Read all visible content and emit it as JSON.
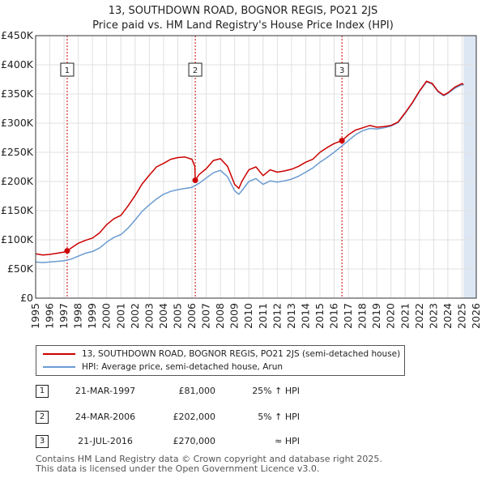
{
  "title_line1": "13, SOUTHDOWN ROAD, BOGNOR REGIS, PO21 2JS",
  "title_line2": "Price paid vs. HM Land Registry's House Price Index (HPI)",
  "colors": {
    "price": "#cc0000",
    "hpi": "#6a9bd1",
    "shade": "#dde7f4",
    "grid": "#e0e0e0"
  },
  "chart_data": {
    "type": "line",
    "title": "13, SOUTHDOWN ROAD, BOGNOR REGIS, PO21 2JS",
    "subtitle": "Price paid vs. HM Land Registry's House Price Index (HPI)",
    "xlabel": "",
    "ylabel": "",
    "xlim": [
      1995,
      2026
    ],
    "ylim": [
      0,
      450000
    ],
    "y_ticks": [
      0,
      50000,
      100000,
      150000,
      200000,
      250000,
      300000,
      350000,
      400000,
      450000
    ],
    "y_tick_labels": [
      "£0",
      "£50K",
      "£100K",
      "£150K",
      "£200K",
      "£250K",
      "£300K",
      "£350K",
      "£400K",
      "£450K"
    ],
    "x_ticks": [
      1995,
      1996,
      1997,
      1998,
      1999,
      2000,
      2001,
      2002,
      2003,
      2004,
      2005,
      2006,
      2007,
      2008,
      2009,
      2010,
      2011,
      2012,
      2013,
      2014,
      2015,
      2016,
      2017,
      2018,
      2019,
      2020,
      2021,
      2022,
      2023,
      2024,
      2025,
      2026
    ],
    "x_tick_labels": [
      "1995",
      "1996",
      "1997",
      "1998",
      "1999",
      "2000",
      "2001",
      "2002",
      "2003",
      "2004",
      "2005",
      "2006",
      "2007",
      "2008",
      "2009",
      "2010",
      "2011",
      "2012",
      "2013",
      "2014",
      "2015",
      "2016",
      "2017",
      "2018",
      "2019",
      "2020",
      "2021",
      "2022",
      "2023",
      "2024",
      "2025",
      "2026"
    ],
    "shaded_future_from": 2025.1,
    "grid": true,
    "series": [
      {
        "name": "13, SOUTHDOWN ROAD, BOGNOR REGIS, PO21 2JS (semi-detached house)",
        "color": "#cc0000",
        "x": [
          1995.0,
          1995.5,
          1996.0,
          1996.5,
          1997.0,
          1997.22,
          1997.5,
          1998.0,
          1998.5,
          1999.0,
          1999.5,
          2000.0,
          2000.5,
          2001.0,
          2001.5,
          2002.0,
          2002.5,
          2003.0,
          2003.5,
          2004.0,
          2004.5,
          2005.0,
          2005.5,
          2006.0,
          2006.2,
          2006.23,
          2006.5,
          2007.0,
          2007.5,
          2008.0,
          2008.5,
          2009.0,
          2009.3,
          2009.5,
          2010.0,
          2010.5,
          2011.0,
          2011.5,
          2012.0,
          2012.5,
          2013.0,
          2013.5,
          2014.0,
          2014.5,
          2015.0,
          2015.5,
          2016.0,
          2016.55,
          2017.0,
          2017.5,
          2018.0,
          2018.5,
          2019.0,
          2019.5,
          2020.0,
          2020.5,
          2021.0,
          2021.5,
          2022.0,
          2022.5,
          2022.9,
          2023.3,
          2023.7,
          2024.0,
          2024.5,
          2025.0,
          2025.1
        ],
        "values": [
          76000,
          74000,
          75000,
          77000,
          79000,
          81000,
          86000,
          94000,
          99000,
          103000,
          112000,
          126000,
          136000,
          142000,
          158000,
          176000,
          196000,
          211000,
          225000,
          231000,
          238000,
          241000,
          242000,
          238000,
          226000,
          202000,
          212000,
          222000,
          236000,
          239000,
          226000,
          195000,
          188000,
          200000,
          220000,
          225000,
          210000,
          220000,
          216000,
          218000,
          221000,
          226000,
          233000,
          238000,
          250000,
          258000,
          265000,
          270000,
          280000,
          288000,
          292000,
          296000,
          293000,
          294000,
          296000,
          302000,
          318000,
          335000,
          355000,
          372000,
          368000,
          355000,
          348000,
          352000,
          362000,
          368000,
          366000
        ]
      },
      {
        "name": "HPI: Average price, semi-detached house, Arun",
        "color": "#6a9bd1",
        "x": [
          1995.0,
          1995.5,
          1996.0,
          1996.5,
          1997.0,
          1997.5,
          1998.0,
          1998.5,
          1999.0,
          1999.5,
          2000.0,
          2000.5,
          2001.0,
          2001.5,
          2002.0,
          2002.5,
          2003.0,
          2003.5,
          2004.0,
          2004.5,
          2005.0,
          2005.5,
          2006.0,
          2006.5,
          2007.0,
          2007.5,
          2008.0,
          2008.5,
          2009.0,
          2009.3,
          2009.5,
          2010.0,
          2010.5,
          2011.0,
          2011.5,
          2012.0,
          2012.5,
          2013.0,
          2013.5,
          2014.0,
          2014.5,
          2015.0,
          2015.5,
          2016.0,
          2016.5,
          2017.0,
          2017.5,
          2018.0,
          2018.5,
          2019.0,
          2019.5,
          2020.0,
          2020.5,
          2021.0,
          2021.5,
          2022.0,
          2022.5,
          2022.9,
          2023.3,
          2023.7,
          2024.0,
          2024.5,
          2025.0,
          2025.1
        ],
        "values": [
          62000,
          61000,
          62000,
          63000,
          64000,
          67000,
          72000,
          77000,
          80000,
          86000,
          96000,
          104000,
          109000,
          120000,
          134000,
          149000,
          160000,
          170000,
          178000,
          183000,
          186000,
          188000,
          190000,
          197000,
          206000,
          215000,
          219000,
          208000,
          184000,
          178000,
          184000,
          200000,
          205000,
          195000,
          201000,
          199000,
          201000,
          204000,
          209000,
          216000,
          223000,
          233000,
          241000,
          250000,
          260000,
          270000,
          280000,
          287000,
          291000,
          290000,
          292000,
          295000,
          301000,
          317000,
          334000,
          354000,
          371000,
          367000,
          354000,
          347000,
          351000,
          360000,
          366000,
          365000
        ]
      }
    ],
    "sale_markers": [
      {
        "id": "1",
        "x": 1997.22,
        "y": 81000
      },
      {
        "id": "2",
        "x": 2006.23,
        "y": 202000
      },
      {
        "id": "3",
        "x": 2016.55,
        "y": 270000
      }
    ]
  },
  "legend": {
    "price_label": "13, SOUTHDOWN ROAD, BOGNOR REGIS, PO21 2JS (semi-detached house)",
    "hpi_label": "HPI: Average price, semi-detached house, Arun"
  },
  "sales": [
    {
      "num": "1",
      "date": "21-MAR-1997",
      "price": "£81,000",
      "hpi": "25% ↑ HPI"
    },
    {
      "num": "2",
      "date": "24-MAR-2006",
      "price": "£202,000",
      "hpi": "5% ↑ HPI"
    },
    {
      "num": "3",
      "date": "21-JUL-2016",
      "price": "£270,000",
      "hpi": "≈ HPI"
    }
  ],
  "footer": {
    "line1": "Contains HM Land Registry data © Crown copyright and database right 2025.",
    "line2": "This data is licensed under the Open Government Licence v3.0."
  }
}
